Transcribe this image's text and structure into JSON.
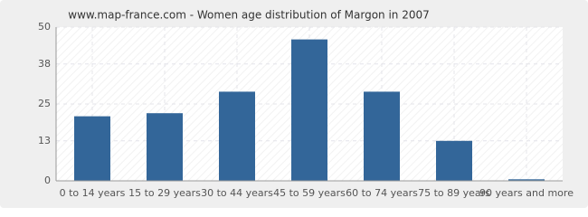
{
  "chart_data": {
    "type": "bar",
    "title": "www.map-france.com - Women age distribution of Margon in 2007",
    "categories": [
      "0 to 14 years",
      "15 to 29 years",
      "30 to 44 years",
      "45 to 59 years",
      "60 to 74 years",
      "75 to 89 years",
      "90 years and more"
    ],
    "values": [
      21,
      22,
      29,
      46,
      29,
      13,
      0.5
    ],
    "color": "#336699",
    "ylim": [
      0,
      50
    ],
    "yticks": [
      0,
      13,
      25,
      38,
      50
    ],
    "grid": true
  }
}
